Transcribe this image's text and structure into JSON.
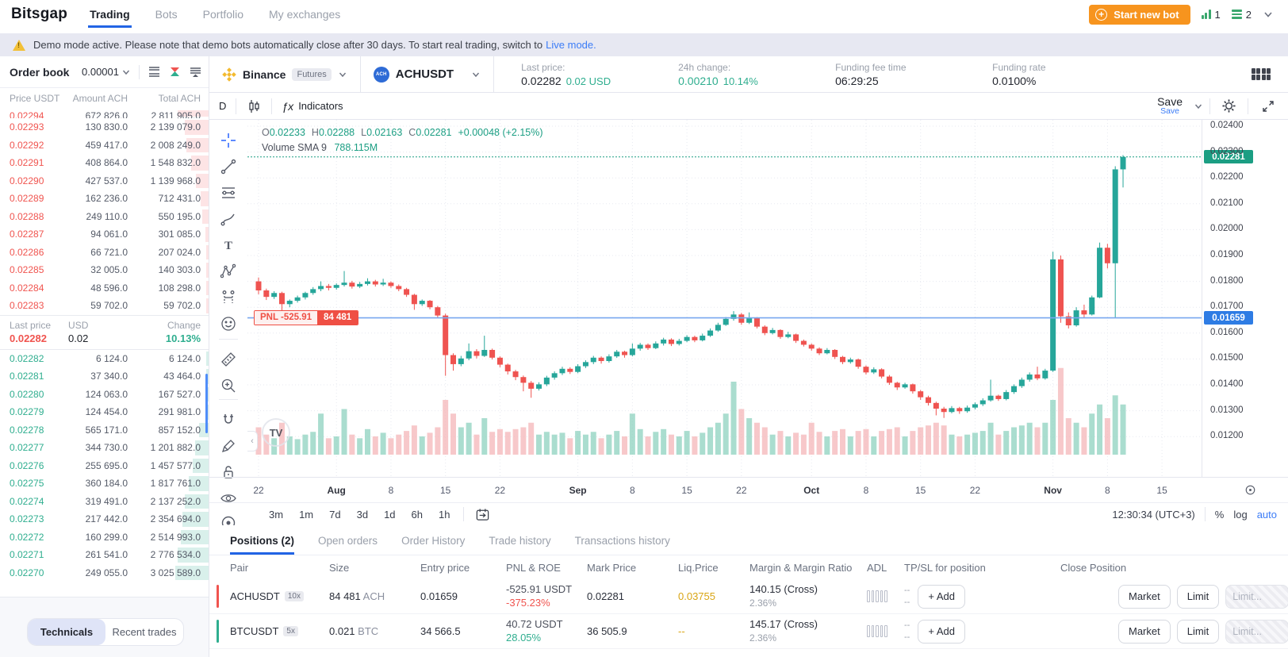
{
  "nav": {
    "brand": "Bitsgap",
    "items": [
      {
        "label": "Trading",
        "active": true
      },
      {
        "label": "Bots",
        "active": false
      },
      {
        "label": "Portfolio",
        "active": false
      },
      {
        "label": "My exchanges",
        "active": false
      }
    ],
    "start_bot_label": "Start new bot",
    "counter_signal": "1",
    "counter_menu": "2"
  },
  "banner": {
    "text": "Demo mode active. Please note that demo bots automatically close after 30 days. To start real trading, switch to",
    "link": "Live mode."
  },
  "orderbook": {
    "title": "Order book",
    "precision": "0.00001",
    "columns": [
      "Price USDT",
      "Amount ACH",
      "Total ACH"
    ],
    "asks": [
      {
        "price": "0.02294",
        "amount": "672 826.0",
        "total": "2 811 905.0",
        "partial": true
      },
      {
        "price": "0.02293",
        "amount": "130 830.0",
        "total": "2 139 079.0"
      },
      {
        "price": "0.02292",
        "amount": "459 417.0",
        "total": "2 008 249.0"
      },
      {
        "price": "0.02291",
        "amount": "408 864.0",
        "total": "1 548 832.0"
      },
      {
        "price": "0.02290",
        "amount": "427 537.0",
        "total": "1 139 968.0"
      },
      {
        "price": "0.02289",
        "amount": "162 236.0",
        "total": "712 431.0"
      },
      {
        "price": "0.02288",
        "amount": "249 110.0",
        "total": "550 195.0"
      },
      {
        "price": "0.02287",
        "amount": "94 061.0",
        "total": "301 085.0"
      },
      {
        "price": "0.02286",
        "amount": "66 721.0",
        "total": "207 024.0"
      },
      {
        "price": "0.02285",
        "amount": "32 005.0",
        "total": "140 303.0"
      },
      {
        "price": "0.02284",
        "amount": "48 596.0",
        "total": "108 298.0"
      },
      {
        "price": "0.02283",
        "amount": "59 702.0",
        "total": "59 702.0"
      }
    ],
    "last": {
      "label": "Last price",
      "price": "0.02282",
      "usd_label": "USD",
      "usd": "0.02",
      "change_label": "Change",
      "change": "10.13%"
    },
    "bids": [
      {
        "price": "0.02282",
        "amount": "6 124.0",
        "total": "6 124.0"
      },
      {
        "price": "0.02281",
        "amount": "37 340.0",
        "total": "43 464.0"
      },
      {
        "price": "0.02280",
        "amount": "124 063.0",
        "total": "167 527.0"
      },
      {
        "price": "0.02279",
        "amount": "124 454.0",
        "total": "291 981.0"
      },
      {
        "price": "0.02278",
        "amount": "565 171.0",
        "total": "857 152.0"
      },
      {
        "price": "0.02277",
        "amount": "344 730.0",
        "total": "1 201 882.0"
      },
      {
        "price": "0.02276",
        "amount": "255 695.0",
        "total": "1 457 577.0"
      },
      {
        "price": "0.02275",
        "amount": "360 184.0",
        "total": "1 817 761.0"
      },
      {
        "price": "0.02274",
        "amount": "319 491.0",
        "total": "2 137 252.0"
      },
      {
        "price": "0.02273",
        "amount": "217 442.0",
        "total": "2 354 694.0"
      },
      {
        "price": "0.02272",
        "amount": "160 299.0",
        "total": "2 514 993.0"
      },
      {
        "price": "0.02271",
        "amount": "261 541.0",
        "total": "2 776 534.0"
      },
      {
        "price": "0.02270",
        "amount": "249 055.0",
        "total": "3 025 589.0"
      }
    ],
    "tabs": [
      {
        "label": "Technicals",
        "active": true
      },
      {
        "label": "Recent trades",
        "active": false
      }
    ]
  },
  "chart_header": {
    "exchange": "Binance",
    "market_badge": "Futures",
    "coin_abbr": "ACH",
    "pair": "ACHUSDT",
    "stats": [
      {
        "label": "Last price:",
        "value": "0.02282",
        "extra": "0.02 USD",
        "value_green": false
      },
      {
        "label": "24h change:",
        "value": "0.00210",
        "extra": "10.14%",
        "value_green": true
      },
      {
        "label": "Funding fee time",
        "value": "06:29:25",
        "extra": "",
        "value_green": false
      },
      {
        "label": "Funding rate",
        "value": "0.0100%",
        "extra": "",
        "value_green": false
      }
    ]
  },
  "tv": {
    "interval": "D",
    "indicators_label": "Indicators",
    "fx": "ƒx",
    "save_label": "Save",
    "save_sub": "Save",
    "legend": {
      "pairs": [
        [
          "O",
          "0.02233"
        ],
        [
          "H",
          "0.02288"
        ],
        [
          "L",
          "0.02163"
        ],
        [
          "C",
          "0.02281"
        ]
      ],
      "change": "+0.00048 (+2.15%)",
      "volume_label": "Volume SMA 9",
      "volume_value": "788.115M"
    },
    "pnl_label": "PNL -525.91",
    "pnl_size": "84 481",
    "price_axis": [
      "0.02400",
      "0.02300",
      "0.02200",
      "0.02100",
      "0.02000",
      "0.01900",
      "0.01800",
      "0.01700",
      "0.01600",
      "0.01500",
      "0.01400",
      "0.01300",
      "0.01200"
    ],
    "last_badge": "0.02281",
    "entry_badge": "0.01659",
    "time_axis": [
      {
        "label": "22",
        "day": 0
      },
      {
        "label": "Aug",
        "day": 10,
        "month": true
      },
      {
        "label": "8",
        "day": 17
      },
      {
        "label": "15",
        "day": 24
      },
      {
        "label": "22",
        "day": 31
      },
      {
        "label": "Sep",
        "day": 41,
        "month": true
      },
      {
        "label": "8",
        "day": 48
      },
      {
        "label": "15",
        "day": 55
      },
      {
        "label": "22",
        "day": 62
      },
      {
        "label": "Oct",
        "day": 71,
        "month": true
      },
      {
        "label": "8",
        "day": 78
      },
      {
        "label": "15",
        "day": 85
      },
      {
        "label": "22",
        "day": 92
      },
      {
        "label": "Nov",
        "day": 102,
        "month": true
      },
      {
        "label": "8",
        "day": 109
      },
      {
        "label": "15",
        "day": 116
      }
    ],
    "timeframes": [
      "3m",
      "1m",
      "7d",
      "3d",
      "1d",
      "6h",
      "1h"
    ],
    "clock": "12:30:34 (UTC+3)",
    "scale_buttons": [
      {
        "label": "%",
        "active": false
      },
      {
        "label": "log",
        "active": false
      },
      {
        "label": "auto",
        "active": true
      }
    ]
  },
  "chart_data": {
    "type": "candlestick",
    "pair": "ACHUSDT",
    "interval": "1D",
    "price_scale": 100000,
    "vol_scale": 100,
    "entry_price": 0.01659,
    "last_price": 0.02281,
    "ylim": [
      0.0115,
      0.0245
    ],
    "candles": [
      [
        1800,
        1815,
        1750,
        1765,
        30
      ],
      [
        1765,
        1772,
        1728,
        1740,
        22
      ],
      [
        1740,
        1762,
        1732,
        1755,
        18
      ],
      [
        1755,
        1760,
        1680,
        1712,
        35
      ],
      [
        1712,
        1730,
        1700,
        1725,
        20
      ],
      [
        1725,
        1745,
        1718,
        1738,
        17
      ],
      [
        1738,
        1760,
        1730,
        1755,
        22
      ],
      [
        1755,
        1778,
        1748,
        1770,
        25
      ],
      [
        1770,
        1800,
        1762,
        1782,
        45
      ],
      [
        1782,
        1790,
        1765,
        1775,
        18
      ],
      [
        1775,
        1792,
        1768,
        1786,
        20
      ],
      [
        1786,
        1840,
        1780,
        1795,
        50
      ],
      [
        1795,
        1802,
        1772,
        1780,
        22
      ],
      [
        1780,
        1798,
        1774,
        1790,
        18
      ],
      [
        1790,
        1812,
        1784,
        1800,
        28
      ],
      [
        1800,
        1806,
        1780,
        1788,
        20
      ],
      [
        1788,
        1810,
        1782,
        1795,
        24
      ],
      [
        1795,
        1800,
        1775,
        1782,
        18
      ],
      [
        1782,
        1788,
        1762,
        1770,
        22
      ],
      [
        1770,
        1775,
        1740,
        1748,
        26
      ],
      [
        1748,
        1752,
        1690,
        1712,
        32
      ],
      [
        1712,
        1730,
        1705,
        1725,
        20
      ],
      [
        1725,
        1728,
        1692,
        1700,
        24
      ],
      [
        1700,
        1705,
        1660,
        1668,
        30
      ],
      [
        1668,
        1675,
        1435,
        1515,
        60
      ],
      [
        1515,
        1522,
        1455,
        1480,
        45
      ],
      [
        1480,
        1512,
        1472,
        1502,
        30
      ],
      [
        1502,
        1560,
        1495,
        1530,
        35
      ],
      [
        1530,
        1538,
        1502,
        1512,
        22
      ],
      [
        1512,
        1590,
        1508,
        1535,
        40
      ],
      [
        1535,
        1540,
        1498,
        1505,
        25
      ],
      [
        1505,
        1510,
        1468,
        1478,
        28
      ],
      [
        1478,
        1482,
        1440,
        1452,
        25
      ],
      [
        1452,
        1458,
        1418,
        1430,
        28
      ],
      [
        1430,
        1436,
        1375,
        1408,
        30
      ],
      [
        1408,
        1415,
        1350,
        1385,
        35
      ],
      [
        1385,
        1410,
        1378,
        1402,
        22
      ],
      [
        1402,
        1435,
        1395,
        1428,
        25
      ],
      [
        1428,
        1452,
        1420,
        1445,
        22
      ],
      [
        1445,
        1470,
        1438,
        1462,
        24
      ],
      [
        1462,
        1468,
        1442,
        1450,
        18
      ],
      [
        1450,
        1480,
        1445,
        1472,
        26
      ],
      [
        1472,
        1495,
        1465,
        1488,
        22
      ],
      [
        1488,
        1512,
        1480,
        1505,
        25
      ],
      [
        1505,
        1510,
        1482,
        1492,
        18
      ],
      [
        1492,
        1518,
        1486,
        1510,
        22
      ],
      [
        1510,
        1535,
        1504,
        1528,
        26
      ],
      [
        1528,
        1532,
        1505,
        1515,
        20
      ],
      [
        1515,
        1560,
        1510,
        1540,
        45
      ],
      [
        1540,
        1562,
        1532,
        1555,
        28
      ],
      [
        1555,
        1560,
        1535,
        1542,
        20
      ],
      [
        1542,
        1568,
        1538,
        1560,
        25
      ],
      [
        1560,
        1582,
        1552,
        1575,
        28
      ],
      [
        1575,
        1580,
        1550,
        1558,
        22
      ],
      [
        1558,
        1578,
        1552,
        1570,
        20
      ],
      [
        1570,
        1592,
        1565,
        1585,
        26
      ],
      [
        1585,
        1590,
        1565,
        1572,
        20
      ],
      [
        1572,
        1598,
        1568,
        1590,
        24
      ],
      [
        1590,
        1618,
        1585,
        1610,
        30
      ],
      [
        1610,
        1640,
        1605,
        1632,
        35
      ],
      [
        1632,
        1662,
        1628,
        1655,
        45
      ],
      [
        1655,
        1685,
        1648,
        1672,
        80
      ],
      [
        1672,
        1678,
        1632,
        1640,
        50
      ],
      [
        1640,
        1680,
        1635,
        1658,
        40
      ],
      [
        1658,
        1662,
        1618,
        1625,
        35
      ],
      [
        1625,
        1630,
        1592,
        1600,
        30
      ],
      [
        1600,
        1620,
        1595,
        1612,
        22
      ],
      [
        1612,
        1615,
        1578,
        1585,
        26
      ],
      [
        1585,
        1605,
        1580,
        1595,
        20
      ],
      [
        1595,
        1598,
        1562,
        1570,
        24
      ],
      [
        1570,
        1575,
        1548,
        1555,
        22
      ],
      [
        1555,
        1560,
        1532,
        1540,
        35
      ],
      [
        1540,
        1545,
        1515,
        1522,
        25
      ],
      [
        1522,
        1542,
        1518,
        1535,
        20
      ],
      [
        1535,
        1538,
        1500,
        1508,
        26
      ],
      [
        1508,
        1512,
        1480,
        1488,
        28
      ],
      [
        1488,
        1505,
        1482,
        1498,
        20
      ],
      [
        1498,
        1502,
        1462,
        1470,
        26
      ],
      [
        1470,
        1475,
        1440,
        1448,
        28
      ],
      [
        1448,
        1468,
        1442,
        1460,
        20
      ],
      [
        1460,
        1464,
        1425,
        1432,
        26
      ],
      [
        1432,
        1438,
        1400,
        1408,
        28
      ],
      [
        1408,
        1412,
        1380,
        1390,
        30
      ],
      [
        1390,
        1408,
        1385,
        1402,
        20
      ],
      [
        1402,
        1405,
        1366,
        1375,
        26
      ],
      [
        1375,
        1380,
        1342,
        1352,
        30
      ],
      [
        1352,
        1358,
        1320,
        1330,
        32
      ],
      [
        1330,
        1335,
        1282,
        1308,
        35
      ],
      [
        1308,
        1315,
        1272,
        1295,
        32
      ],
      [
        1295,
        1318,
        1290,
        1310,
        22
      ],
      [
        1310,
        1315,
        1288,
        1298,
        20
      ],
      [
        1298,
        1320,
        1292,
        1312,
        22
      ],
      [
        1312,
        1332,
        1305,
        1325,
        24
      ],
      [
        1325,
        1348,
        1318,
        1340,
        26
      ],
      [
        1340,
        1420,
        1335,
        1358,
        35
      ],
      [
        1358,
        1362,
        1338,
        1345,
        22
      ],
      [
        1345,
        1380,
        1340,
        1372,
        26
      ],
      [
        1372,
        1402,
        1365,
        1395,
        30
      ],
      [
        1395,
        1428,
        1388,
        1420,
        32
      ],
      [
        1420,
        1448,
        1412,
        1440,
        35
      ],
      [
        1440,
        1470,
        1418,
        1425,
        30
      ],
      [
        1425,
        1462,
        1420,
        1455,
        35
      ],
      [
        1455,
        1915,
        1450,
        1885,
        60
      ],
      [
        1885,
        1900,
        1640,
        1665,
        95
      ],
      [
        1665,
        1680,
        1618,
        1630,
        40
      ],
      [
        1630,
        1700,
        1625,
        1688,
        35
      ],
      [
        1688,
        1710,
        1660,
        1672,
        30
      ],
      [
        1672,
        1745,
        1668,
        1738,
        45
      ],
      [
        1738,
        1950,
        1735,
        1930,
        55
      ],
      [
        1930,
        1945,
        1850,
        1870,
        40
      ],
      [
        1870,
        2245,
        1659,
        2233,
        65
      ],
      [
        2233,
        2288,
        2163,
        2281,
        55
      ]
    ]
  },
  "positions": {
    "tabs": [
      {
        "label": "Positions (2)",
        "active": true
      },
      {
        "label": "Open orders",
        "active": false
      },
      {
        "label": "Order History",
        "active": false
      },
      {
        "label": "Trade history",
        "active": false
      },
      {
        "label": "Transactions history",
        "active": false
      }
    ],
    "columns": [
      "Pair",
      "Size",
      "Entry price",
      "PNL & ROE",
      "Mark Price",
      "Liq.Price",
      "Margin & Margin Ratio",
      "ADL",
      "TP/SL for position",
      "Close Position"
    ],
    "rows": [
      {
        "pair": "ACHUSDT",
        "leverage": "10x",
        "side": "short",
        "size_value": "84 481",
        "size_unit": "ACH",
        "entry": "0.01659",
        "pnl": "-525.91 USDT",
        "roe": "-375.23%",
        "pnl_dir": "down",
        "mark": "0.02281",
        "liq": "0.03755",
        "margin": "140.15  (Cross)",
        "margin_ratio": "2.36%",
        "tpsl": [
          "--",
          "--"
        ],
        "add_label": "+ Add",
        "market_label": "Market",
        "limit_label": "Limit",
        "limit_placeholder": "Limit..."
      },
      {
        "pair": "BTCUSDT",
        "leverage": "5x",
        "side": "long",
        "size_value": "0.021",
        "size_unit": "BTC",
        "entry": "34 566.5",
        "pnl": "40.72 USDT",
        "roe": "28.05%",
        "pnl_dir": "up",
        "mark": "36 505.9",
        "liq": "--",
        "margin": "145.17  (Cross)",
        "margin_ratio": "2.36%",
        "tpsl": [
          "--",
          "--"
        ],
        "add_label": "+ Add",
        "market_label": "Market",
        "limit_label": "Limit",
        "limit_placeholder": "Limit..."
      }
    ]
  },
  "colors": {
    "accent_blue": "#2264e5",
    "link_blue": "#3b7cf7",
    "sell_red": "#f0544f",
    "buy_green": "#2fae8f",
    "candle_up": "#26a69a",
    "candle_down": "#ef5350",
    "orange_cta": "#f7941e",
    "teal_badge": "#1b9e83",
    "entry_badge_blue": "#2e7ce4",
    "liq_yellow": "#d9a514",
    "banner_bg": "#e7e8f2"
  }
}
